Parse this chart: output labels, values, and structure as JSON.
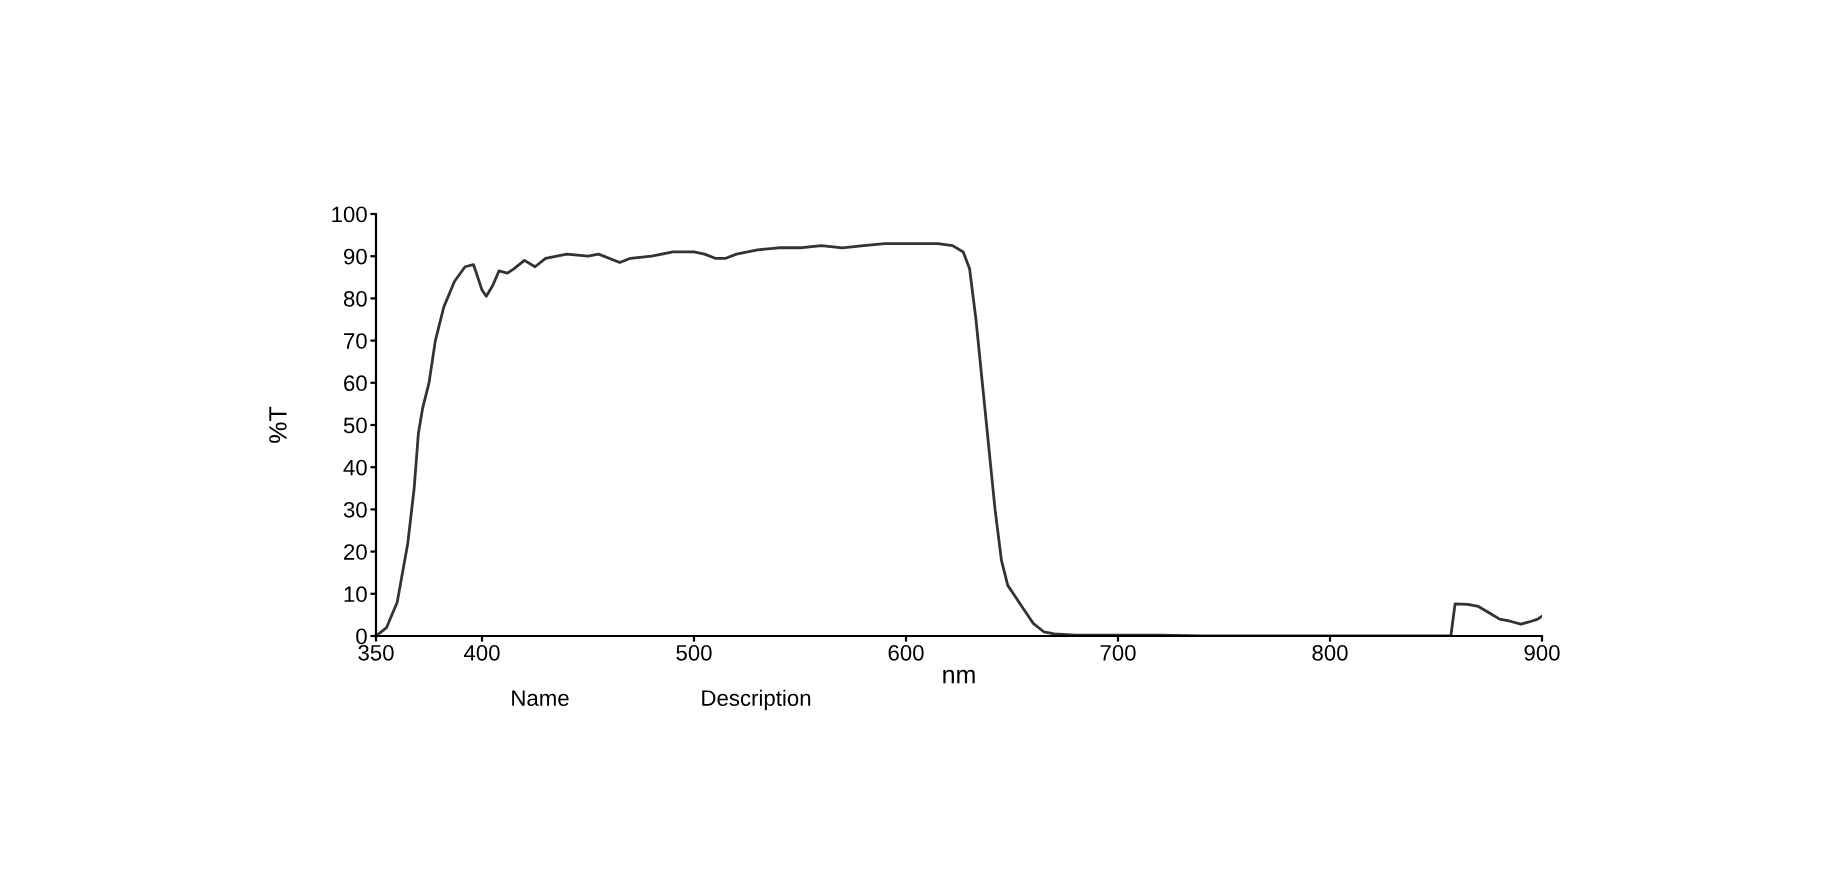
{
  "chart_data": {
    "type": "line",
    "xlabel": "nm",
    "ylabel": "%T",
    "annotations": [
      "Name",
      "Description"
    ],
    "xlim": [
      350,
      900
    ],
    "ylim": [
      0,
      100
    ],
    "xticks": [
      350,
      400,
      500,
      600,
      700,
      800,
      900
    ],
    "yticks": [
      0,
      10,
      20,
      30,
      40,
      50,
      60,
      70,
      80,
      90,
      100
    ],
    "grid": false,
    "legend": false,
    "series": [
      {
        "color": "#333333",
        "x": [
          350,
          355,
          360,
          365,
          368,
          370,
          372,
          375,
          378,
          382,
          387,
          392,
          396,
          400,
          402,
          405,
          408,
          412,
          415,
          420,
          425,
          430,
          440,
          450,
          455,
          465,
          470,
          480,
          490,
          500,
          505,
          510,
          515,
          520,
          530,
          540,
          550,
          560,
          570,
          580,
          590,
          600,
          615,
          622,
          627,
          630,
          633,
          636,
          639,
          642,
          645,
          648,
          652,
          656,
          660,
          665,
          670,
          680,
          700,
          720,
          740,
          800,
          857,
          859,
          865,
          870,
          875,
          880,
          885,
          890,
          895,
          898,
          900
        ],
        "values": [
          0,
          2,
          8,
          22,
          35,
          48,
          54,
          60,
          70,
          78,
          84,
          87.5,
          88,
          82,
          80.5,
          83,
          86.5,
          86,
          87,
          89,
          87.5,
          89.5,
          90.5,
          90,
          90.5,
          88.5,
          89.5,
          90,
          91,
          91,
          90.5,
          89.5,
          89.5,
          90.5,
          91.5,
          92,
          92,
          92.5,
          92,
          92.5,
          93,
          93,
          93,
          92.5,
          91,
          87,
          75,
          60,
          45,
          30,
          18,
          12,
          9,
          6,
          3,
          1,
          0.5,
          0.2,
          0.2,
          0.2,
          0,
          0,
          0,
          7.6,
          7.5,
          7,
          5.5,
          4,
          3.5,
          2.8,
          3.5,
          4,
          4.7
        ]
      }
    ]
  }
}
